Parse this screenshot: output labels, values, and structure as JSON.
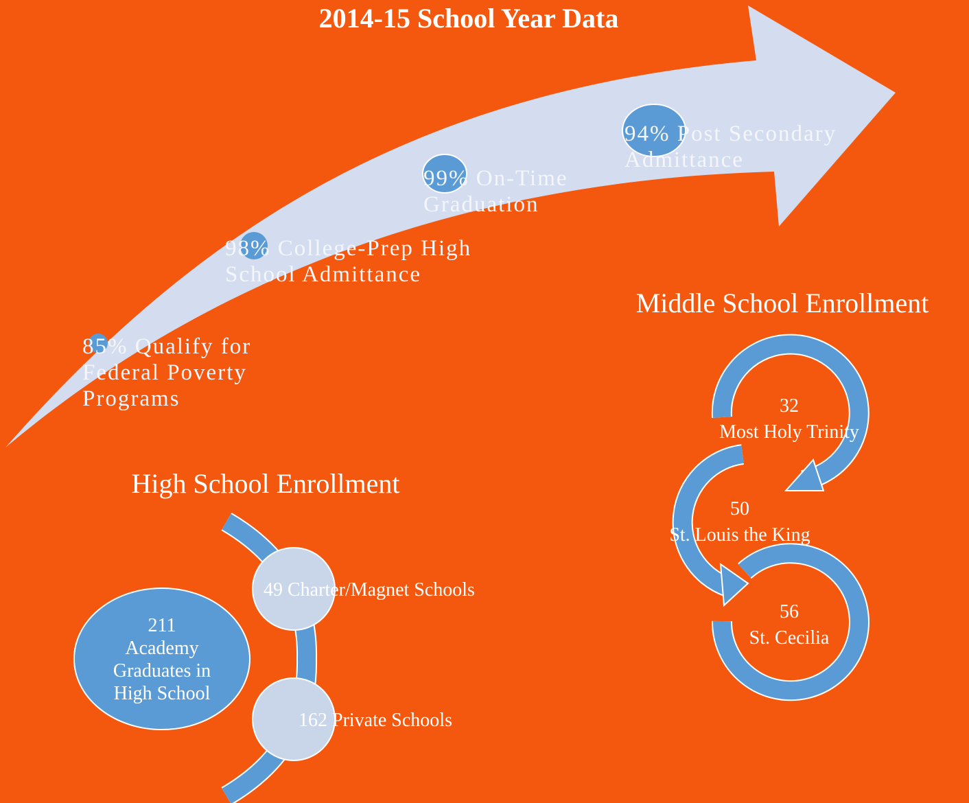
{
  "title": "2014-15 School Year Data",
  "arrow_steps": [
    {
      "lines": [
        "85% Qualify for",
        "Federal Poverty",
        "Programs"
      ]
    },
    {
      "lines": [
        "98% College-Prep High",
        "School Admittance"
      ]
    },
    {
      "lines": [
        "99% On-Time",
        "Graduation"
      ]
    },
    {
      "lines": [
        "94% Post Secondary",
        "Admittance"
      ]
    }
  ],
  "high_school": {
    "title": "High School Enrollment",
    "center_lines": [
      "211",
      "Academy",
      "Graduates in",
      "High School"
    ],
    "branches": [
      "49 Charter/Magnet Schools",
      "162 Private Schools"
    ]
  },
  "middle_school": {
    "title": "Middle School Enrollment",
    "items": [
      {
        "count": "32",
        "name": "Most Holy Trinity"
      },
      {
        "count": "50",
        "name": "St. Louis the King"
      },
      {
        "count": "56",
        "name": "St. Cecilia"
      }
    ]
  }
}
